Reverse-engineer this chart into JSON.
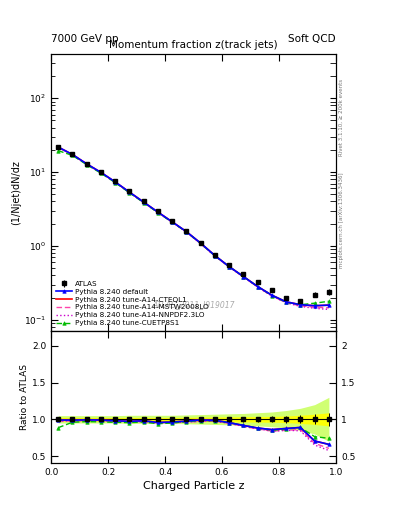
{
  "title_top_left": "7000 GeV pp",
  "title_top_right": "Soft QCD",
  "main_title": "Momentum fraction z(track jets)",
  "xlabel": "Charged Particle z",
  "ylabel_main": "(1/Njet)dN/dz",
  "ylabel_ratio": "Ratio to ATLAS",
  "right_label_top": "Rivet 3.1.10, ≥ 200k events",
  "right_label_bottom": "mcplots.cern.ch [arXiv:1306.3436]",
  "watermark": "ATLAS_2011_I919017",
  "xlim": [
    0.0,
    1.0
  ],
  "ylim_main": [
    0.07,
    400
  ],
  "ylim_ratio": [
    0.4,
    2.2
  ],
  "atlas_x": [
    0.025,
    0.075,
    0.125,
    0.175,
    0.225,
    0.275,
    0.325,
    0.375,
    0.425,
    0.475,
    0.525,
    0.575,
    0.625,
    0.675,
    0.725,
    0.775,
    0.825,
    0.875,
    0.925,
    0.975
  ],
  "atlas_y": [
    22.0,
    17.5,
    13.0,
    10.0,
    7.5,
    5.5,
    4.0,
    3.0,
    2.2,
    1.6,
    1.1,
    0.75,
    0.55,
    0.42,
    0.32,
    0.25,
    0.2,
    0.18,
    0.22,
    0.24
  ],
  "atlas_yerr": [
    0.6,
    0.5,
    0.4,
    0.3,
    0.22,
    0.16,
    0.12,
    0.09,
    0.065,
    0.05,
    0.04,
    0.03,
    0.02,
    0.018,
    0.015,
    0.012,
    0.012,
    0.012,
    0.018,
    0.025
  ],
  "py_x": [
    0.025,
    0.075,
    0.125,
    0.175,
    0.225,
    0.275,
    0.325,
    0.375,
    0.425,
    0.475,
    0.525,
    0.575,
    0.625,
    0.675,
    0.725,
    0.775,
    0.825,
    0.875,
    0.925,
    0.975
  ],
  "default_y": [
    21.8,
    17.3,
    12.9,
    9.9,
    7.35,
    5.35,
    3.92,
    2.87,
    2.12,
    1.56,
    1.09,
    0.74,
    0.525,
    0.385,
    0.282,
    0.215,
    0.175,
    0.16,
    0.155,
    0.158
  ],
  "cteq_y": [
    21.8,
    17.3,
    12.9,
    9.9,
    7.35,
    5.35,
    3.92,
    2.87,
    2.12,
    1.56,
    1.09,
    0.74,
    0.525,
    0.385,
    0.282,
    0.215,
    0.175,
    0.16,
    0.155,
    0.158
  ],
  "mstw_y": [
    21.5,
    17.1,
    12.8,
    9.8,
    7.3,
    5.3,
    3.88,
    2.84,
    2.1,
    1.54,
    1.07,
    0.73,
    0.52,
    0.38,
    0.278,
    0.21,
    0.17,
    0.155,
    0.148,
    0.145
  ],
  "nnpdf_y": [
    21.5,
    17.1,
    12.8,
    9.8,
    7.3,
    5.3,
    3.88,
    2.84,
    2.1,
    1.54,
    1.07,
    0.73,
    0.52,
    0.38,
    0.278,
    0.21,
    0.17,
    0.152,
    0.143,
    0.138
  ],
  "cuetp_y": [
    19.5,
    16.8,
    12.6,
    9.65,
    7.2,
    5.25,
    3.85,
    2.82,
    2.09,
    1.55,
    1.08,
    0.735,
    0.525,
    0.385,
    0.282,
    0.213,
    0.173,
    0.16,
    0.168,
    0.178
  ],
  "color_atlas": "#000000",
  "color_default": "#0000ff",
  "color_cteq": "#ff0000",
  "color_mstw": "#ff44aa",
  "color_nnpdf": "#cc00cc",
  "color_cuetp": "#00bb00",
  "band_yellow": "#ffff00",
  "band_green": "#aaff00",
  "ratio_atlas_err_stat": [
    0.027,
    0.025,
    0.025,
    0.025,
    0.025,
    0.025,
    0.025,
    0.025,
    0.025,
    0.027,
    0.03,
    0.032,
    0.034,
    0.036,
    0.038,
    0.04,
    0.045,
    0.055,
    0.07,
    0.09
  ],
  "ratio_atlas_err_syst": [
    0.05,
    0.05,
    0.05,
    0.05,
    0.05,
    0.055,
    0.055,
    0.055,
    0.055,
    0.06,
    0.065,
    0.07,
    0.075,
    0.08,
    0.09,
    0.1,
    0.12,
    0.15,
    0.2,
    0.3
  ],
  "legend_entries": [
    "ATLAS",
    "Pythia 8.240 default",
    "Pythia 8.240 tune-A14-CTEQL1",
    "Pythia 8.240 tune-A14-MSTW2008LO",
    "Pythia 8.240 tune-A14-NNPDF2.3LO",
    "Pythia 8.240 tune-CUETP8S1"
  ]
}
